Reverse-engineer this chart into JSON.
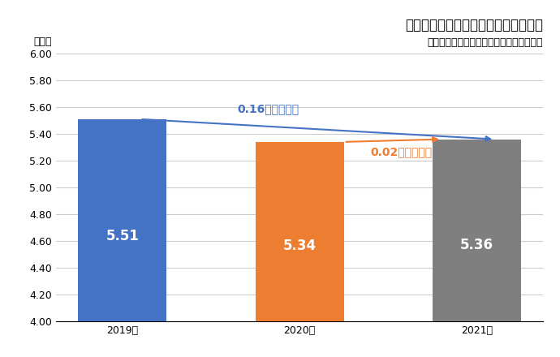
{
  "title": "建設技能工の平均有効求人倍率の比較",
  "subtitle": "厚生労働省「一般職業紹介状況」より作成",
  "ylabel": "（倍）",
  "categories": [
    "2019年",
    "2020年",
    "2021年"
  ],
  "values": [
    5.51,
    5.34,
    5.36
  ],
  "bar_colors": [
    "#4472C4",
    "#ED7D31",
    "#7F7F7F"
  ],
  "ylim": [
    4.0,
    6.0
  ],
  "yticks": [
    4.0,
    4.2,
    4.4,
    4.6,
    4.8,
    5.0,
    5.2,
    5.4,
    5.6,
    5.8,
    6.0
  ],
  "arrow1_text": "0.16ポイント減",
  "arrow1_color": "#4472C4",
  "arrow2_text": "0.02ポイント増",
  "arrow2_color": "#ED7D31",
  "background_color": "#FFFFFF",
  "grid_color": "#CCCCCC",
  "bar_label_color": "#FFFFFF",
  "bar_label_fontsize": 12,
  "title_fontsize": 12,
  "subtitle_fontsize": 9,
  "ylabel_fontsize": 9,
  "tick_fontsize": 9,
  "annotation_fontsize": 10
}
